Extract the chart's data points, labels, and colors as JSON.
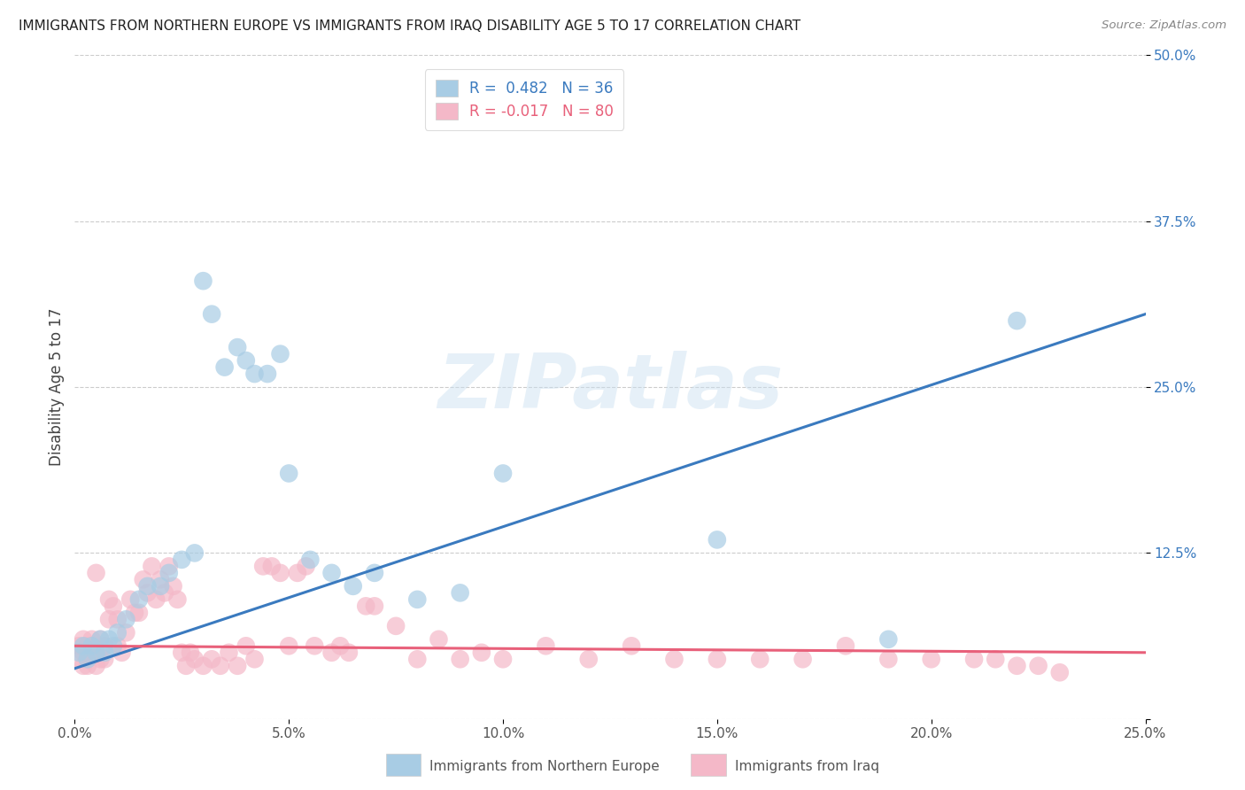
{
  "title": "IMMIGRANTS FROM NORTHERN EUROPE VS IMMIGRANTS FROM IRAQ DISABILITY AGE 5 TO 17 CORRELATION CHART",
  "source": "Source: ZipAtlas.com",
  "ylabel": "Disability Age 5 to 17",
  "xlim": [
    0,
    0.25
  ],
  "ylim": [
    0,
    0.5
  ],
  "xticks": [
    0.0,
    0.05,
    0.1,
    0.15,
    0.2,
    0.25
  ],
  "yticks": [
    0.0,
    0.125,
    0.25,
    0.375,
    0.5
  ],
  "xtick_labels": [
    "0.0%",
    "5.0%",
    "10.0%",
    "15.0%",
    "20.0%",
    "25.0%"
  ],
  "ytick_labels": [
    "",
    "12.5%",
    "25.0%",
    "37.5%",
    "50.0%"
  ],
  "legend_labels": [
    "Immigrants from Northern Europe",
    "Immigrants from Iraq"
  ],
  "R_blue": 0.482,
  "N_blue": 36,
  "R_pink": -0.017,
  "N_pink": 80,
  "blue_color": "#a8cce4",
  "pink_color": "#f4b8c8",
  "blue_line_color": "#3a7abf",
  "pink_line_color": "#e8607a",
  "background_color": "#ffffff",
  "watermark": "ZIPatlas",
  "blue_scatter_x": [
    0.001,
    0.002,
    0.003,
    0.004,
    0.005,
    0.006,
    0.007,
    0.008,
    0.009,
    0.01,
    0.012,
    0.015,
    0.017,
    0.02,
    0.022,
    0.025,
    0.028,
    0.03,
    0.032,
    0.035,
    0.038,
    0.04,
    0.042,
    0.045,
    0.048,
    0.05,
    0.055,
    0.06,
    0.065,
    0.07,
    0.08,
    0.09,
    0.1,
    0.15,
    0.19,
    0.22
  ],
  "blue_scatter_y": [
    0.05,
    0.055,
    0.045,
    0.055,
    0.05,
    0.06,
    0.05,
    0.06,
    0.055,
    0.065,
    0.075,
    0.09,
    0.1,
    0.1,
    0.11,
    0.12,
    0.125,
    0.33,
    0.305,
    0.265,
    0.28,
    0.27,
    0.26,
    0.26,
    0.275,
    0.185,
    0.12,
    0.11,
    0.1,
    0.11,
    0.09,
    0.095,
    0.185,
    0.135,
    0.06,
    0.3
  ],
  "pink_scatter_x": [
    0.001,
    0.001,
    0.002,
    0.002,
    0.002,
    0.003,
    0.003,
    0.003,
    0.004,
    0.004,
    0.005,
    0.005,
    0.005,
    0.006,
    0.006,
    0.007,
    0.007,
    0.008,
    0.008,
    0.009,
    0.01,
    0.01,
    0.011,
    0.012,
    0.013,
    0.014,
    0.015,
    0.016,
    0.017,
    0.018,
    0.019,
    0.02,
    0.021,
    0.022,
    0.023,
    0.024,
    0.025,
    0.026,
    0.027,
    0.028,
    0.03,
    0.032,
    0.034,
    0.036,
    0.038,
    0.04,
    0.042,
    0.044,
    0.046,
    0.048,
    0.05,
    0.052,
    0.054,
    0.056,
    0.06,
    0.062,
    0.064,
    0.068,
    0.07,
    0.075,
    0.08,
    0.085,
    0.09,
    0.095,
    0.1,
    0.11,
    0.12,
    0.13,
    0.14,
    0.15,
    0.16,
    0.17,
    0.18,
    0.19,
    0.2,
    0.21,
    0.215,
    0.22,
    0.225,
    0.23
  ],
  "pink_scatter_y": [
    0.055,
    0.045,
    0.05,
    0.06,
    0.04,
    0.045,
    0.055,
    0.04,
    0.055,
    0.06,
    0.11,
    0.05,
    0.04,
    0.06,
    0.045,
    0.055,
    0.045,
    0.075,
    0.09,
    0.085,
    0.055,
    0.075,
    0.05,
    0.065,
    0.09,
    0.08,
    0.08,
    0.105,
    0.095,
    0.115,
    0.09,
    0.105,
    0.095,
    0.115,
    0.1,
    0.09,
    0.05,
    0.04,
    0.05,
    0.045,
    0.04,
    0.045,
    0.04,
    0.05,
    0.04,
    0.055,
    0.045,
    0.115,
    0.115,
    0.11,
    0.055,
    0.11,
    0.115,
    0.055,
    0.05,
    0.055,
    0.05,
    0.085,
    0.085,
    0.07,
    0.045,
    0.06,
    0.045,
    0.05,
    0.045,
    0.055,
    0.045,
    0.055,
    0.045,
    0.045,
    0.045,
    0.045,
    0.055,
    0.045,
    0.045,
    0.045,
    0.045,
    0.04,
    0.04,
    0.035
  ],
  "blue_line_x": [
    0.0,
    0.25
  ],
  "blue_line_y": [
    0.038,
    0.305
  ],
  "pink_line_x": [
    0.0,
    0.25
  ],
  "pink_line_y": [
    0.055,
    0.05
  ]
}
